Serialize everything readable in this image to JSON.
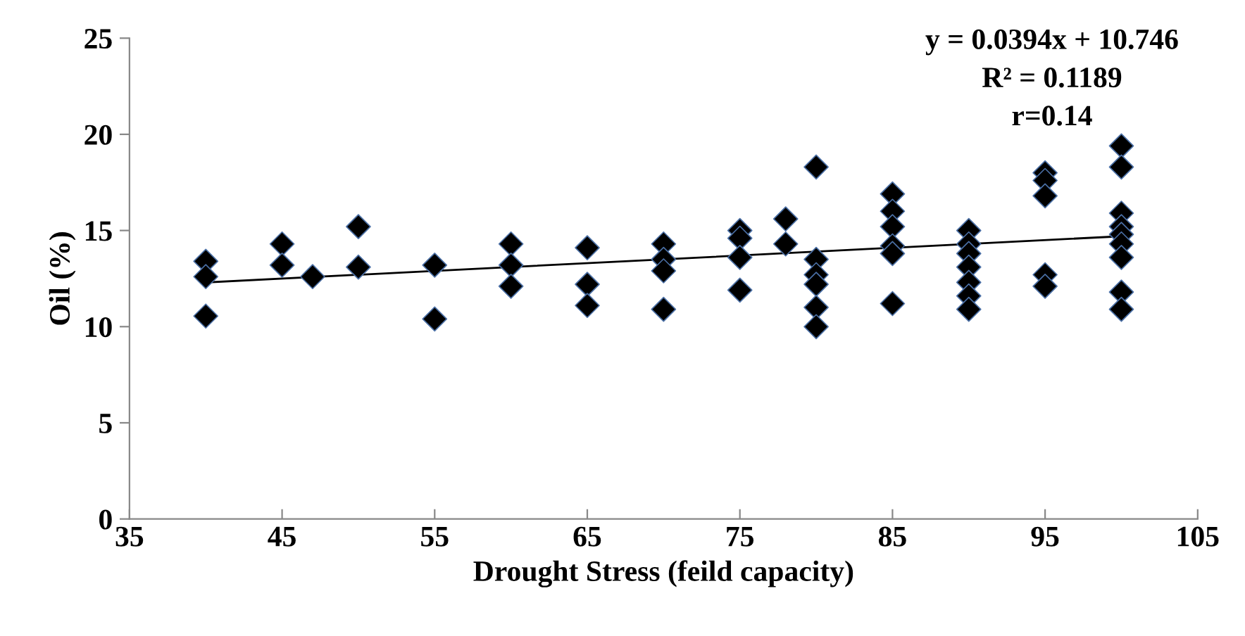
{
  "chart_data": {
    "type": "scatter",
    "xlabel": "Drought Stress (feild capacity)",
    "ylabel": "Oil (%)",
    "xlim": [
      35,
      105
    ],
    "xticks": [
      35,
      45,
      55,
      65,
      75,
      85,
      95,
      105
    ],
    "ylim": [
      0,
      25
    ],
    "yticks": [
      0,
      5,
      10,
      15,
      20,
      25
    ],
    "grid": false,
    "annotations": [
      "y = 0.0394x + 10.746",
      "R² = 0.1189",
      "r=0.14"
    ],
    "series": [
      {
        "marker": "diamond",
        "color": "#000000",
        "x": [
          40,
          40,
          40,
          45,
          45,
          47,
          50,
          50,
          55,
          55,
          60,
          60,
          60,
          65,
          65,
          65,
          70,
          70,
          70,
          70,
          75,
          75,
          75,
          75,
          78,
          78,
          80,
          80,
          80,
          80,
          80,
          80,
          85,
          85,
          85,
          85,
          85,
          85,
          90,
          90,
          90,
          90,
          90,
          90,
          90,
          95,
          95,
          95,
          95,
          95,
          100,
          100,
          100,
          100,
          100,
          100,
          100,
          100,
          100
        ],
        "values": [
          13.4,
          12.6,
          10.55,
          14.3,
          13.2,
          12.6,
          15.2,
          13.1,
          13.2,
          10.4,
          14.3,
          13.2,
          12.1,
          14.1,
          12.2,
          11.1,
          14.3,
          13.5,
          12.9,
          10.9,
          15.0,
          14.6,
          13.6,
          11.9,
          15.6,
          14.3,
          13.5,
          12.7,
          12.2,
          11.0,
          10.0,
          18.3,
          16.9,
          16.0,
          15.2,
          14.2,
          13.8,
          11.2,
          15.0,
          14.3,
          13.8,
          13.1,
          12.3,
          11.6,
          10.9,
          18.0,
          17.6,
          16.8,
          12.7,
          12.1,
          19.4,
          18.3,
          15.9,
          15.2,
          14.8,
          14.3,
          13.6,
          11.8,
          10.9
        ]
      },
      {
        "type": "line",
        "marker": "none",
        "line_style": "solid",
        "color": "#000000",
        "x": [
          40,
          100
        ],
        "values": [
          12.3,
          14.7
        ]
      }
    ]
  }
}
